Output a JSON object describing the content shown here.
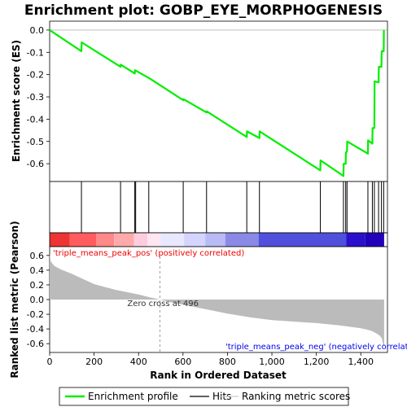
{
  "chart_data": [
    {
      "type": "line",
      "title": "Enrichment plot: GOBP_EYE_MORPHOGENESIS",
      "ylabel": "Enrichment score (ES)",
      "xlim": [
        0,
        1520
      ],
      "ylim": [
        -0.68,
        0.04
      ],
      "yticks": [
        "0.0",
        "-0.1",
        "-0.2",
        "-0.3",
        "-0.4",
        "-0.5",
        "-0.6"
      ],
      "yticks_values": [
        0.0,
        -0.1,
        -0.2,
        -0.3,
        -0.4,
        -0.5,
        -0.6
      ],
      "color": "#00ee00",
      "series": [
        {
          "name": "Enrichment profile",
          "x": [
            0,
            143,
            144,
            319,
            320,
            383,
            384,
            446,
            447,
            601,
            602,
            706,
            707,
            887,
            888,
            944,
            945,
            1218,
            1219,
            1322,
            1323,
            1332,
            1333,
            1338,
            1339,
            1432,
            1433,
            1452,
            1453,
            1461,
            1462,
            1480,
            1481,
            1493,
            1494,
            1503,
            1504
          ],
          "y": [
            0.0,
            -0.095,
            -0.055,
            -0.165,
            -0.155,
            -0.195,
            -0.18,
            -0.215,
            -0.215,
            -0.315,
            -0.31,
            -0.37,
            -0.365,
            -0.48,
            -0.455,
            -0.485,
            -0.455,
            -0.63,
            -0.585,
            -0.655,
            -0.6,
            -0.6,
            -0.55,
            -0.545,
            -0.5,
            -0.555,
            -0.495,
            -0.51,
            -0.44,
            -0.44,
            -0.23,
            -0.235,
            -0.165,
            -0.165,
            -0.095,
            -0.095,
            0.0
          ]
        }
      ]
    },
    {
      "type": "scatter",
      "name": "hits",
      "xlim": [
        0,
        1520
      ],
      "hit_ranks": [
        143,
        319,
        383,
        387,
        446,
        601,
        706,
        887,
        944,
        1218,
        1322,
        1332,
        1338,
        1432,
        1452,
        1461,
        1480,
        1493,
        1503
      ]
    },
    {
      "type": "heatmap",
      "name": "rank color bar",
      "xlim": [
        0,
        1520
      ],
      "segments": [
        {
          "from": 0,
          "to": 90,
          "color": "#ee3333"
        },
        {
          "from": 90,
          "to": 210,
          "color": "#ff5d5d"
        },
        {
          "from": 210,
          "to": 290,
          "color": "#ff8888"
        },
        {
          "from": 290,
          "to": 380,
          "color": "#ffaaaa"
        },
        {
          "from": 380,
          "to": 440,
          "color": "#ffccdd"
        },
        {
          "from": 440,
          "to": 500,
          "color": "#ffe6f0"
        },
        {
          "from": 500,
          "to": 605,
          "color": "#e8e8ff"
        },
        {
          "from": 605,
          "to": 700,
          "color": "#d4d4ff"
        },
        {
          "from": 700,
          "to": 790,
          "color": "#babaf5"
        },
        {
          "from": 790,
          "to": 940,
          "color": "#8a8ae6"
        },
        {
          "from": 940,
          "to": 1335,
          "color": "#5050dd"
        },
        {
          "from": 1335,
          "to": 1420,
          "color": "#2a10cc"
        },
        {
          "from": 1420,
          "to": 1505,
          "color": "#2200bb"
        }
      ]
    },
    {
      "type": "area",
      "xlabel": "Rank in Ordered Dataset",
      "ylabel": "Ranked list metric (Pearson)",
      "xlim": [
        0,
        1520
      ],
      "ylim": [
        -0.72,
        0.72
      ],
      "xticks": [
        "0",
        "200",
        "400",
        "600",
        "800",
        "1,000",
        "1,200",
        "1,400"
      ],
      "xticks_values": [
        0,
        200,
        400,
        600,
        800,
        1000,
        1200,
        1400
      ],
      "yticks": [
        "0.6",
        "0.4",
        "0.2",
        "0.0",
        "-0.2",
        "-0.4",
        "-0.6"
      ],
      "yticks_values": [
        0.6,
        0.4,
        0.2,
        0.0,
        -0.2,
        -0.4,
        -0.6
      ],
      "color": "#bbbbbb",
      "x": [
        0,
        5,
        20,
        50,
        100,
        150,
        200,
        250,
        300,
        350,
        400,
        450,
        496,
        550,
        600,
        700,
        800,
        900,
        1000,
        1100,
        1200,
        1300,
        1350,
        1400,
        1430,
        1450,
        1470,
        1485,
        1495,
        1500,
        1505
      ],
      "y": [
        0.62,
        0.52,
        0.46,
        0.41,
        0.35,
        0.28,
        0.21,
        0.17,
        0.13,
        0.1,
        0.07,
        0.03,
        0.0,
        -0.04,
        -0.07,
        -0.13,
        -0.19,
        -0.24,
        -0.28,
        -0.3,
        -0.32,
        -0.35,
        -0.37,
        -0.39,
        -0.41,
        -0.43,
        -0.46,
        -0.49,
        -0.53,
        -0.6,
        -0.64
      ],
      "annotations": {
        "pos_label": "'triple_means_peak_pos' (positively correlated)",
        "zero_cross": "Zero cross at 496",
        "neg_label": "'triple_means_peak_neg' (negatively correlat"
      },
      "zero_cross_rank": 496
    }
  ],
  "legend": {
    "items": [
      {
        "label": "Enrichment profile",
        "color": "#00ee00"
      },
      {
        "label": "Hits",
        "color": "#000000"
      },
      {
        "label": "Ranking metric scores",
        "color": "#cccccc"
      }
    ]
  },
  "colors": {
    "pos_text": "#ee0000",
    "neg_text": "#0000ee"
  }
}
